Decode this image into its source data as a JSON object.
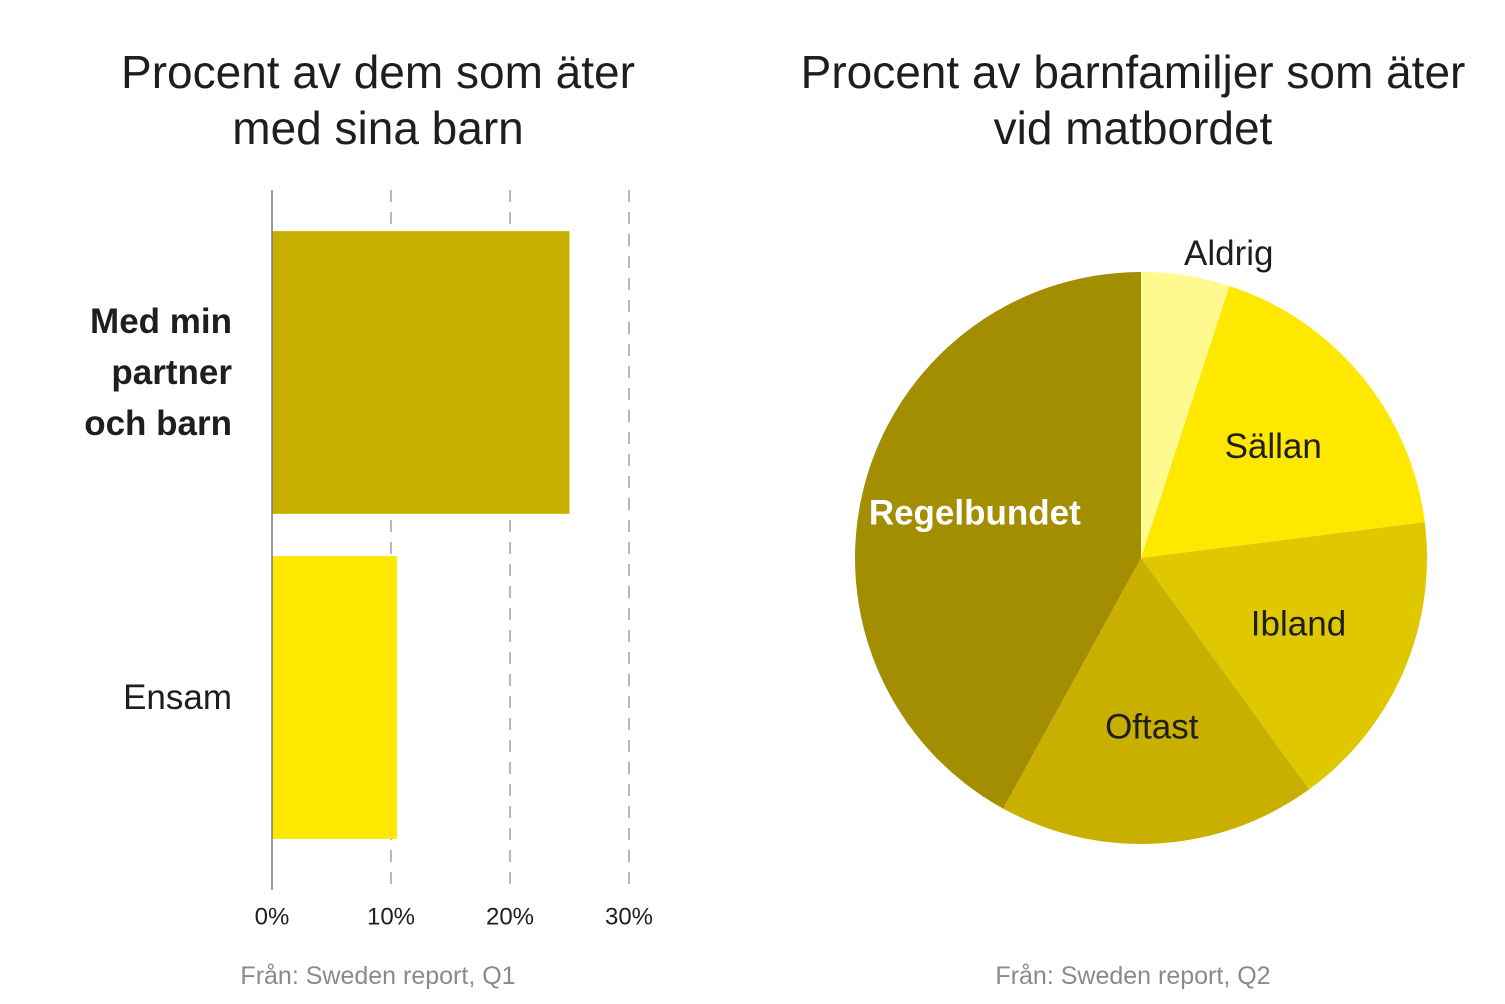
{
  "chart_data": [
    {
      "type": "bar",
      "orientation": "horizontal",
      "title": "Procent av dem som äter med sina barn",
      "categories": [
        "Med min partner och barn",
        "Ensam"
      ],
      "values": [
        25,
        10.5
      ],
      "colors": [
        "#c9b000",
        "#ffe800"
      ],
      "xlim": [
        0,
        30
      ],
      "xticks": [
        {
          "value": 0,
          "label": "0%"
        },
        {
          "value": 10,
          "label": "10%"
        },
        {
          "value": 20,
          "label": "20%"
        },
        {
          "value": 30,
          "label": "30%"
        }
      ],
      "grid": true,
      "source": "Från: Sweden report, Q1"
    },
    {
      "type": "pie",
      "title": "Procent av barnfamiljer som äter vid matbordet",
      "categories": [
        "Aldrig",
        "Sällan",
        "Ibland",
        "Oftast",
        "Regelbundet"
      ],
      "values": [
        5,
        18,
        17,
        18,
        42
      ],
      "colors": [
        "#fffa8f",
        "#ffe800",
        "#e0c800",
        "#c9b000",
        "#a38d00"
      ],
      "source": "Från: Sweden report, Q2"
    }
  ]
}
